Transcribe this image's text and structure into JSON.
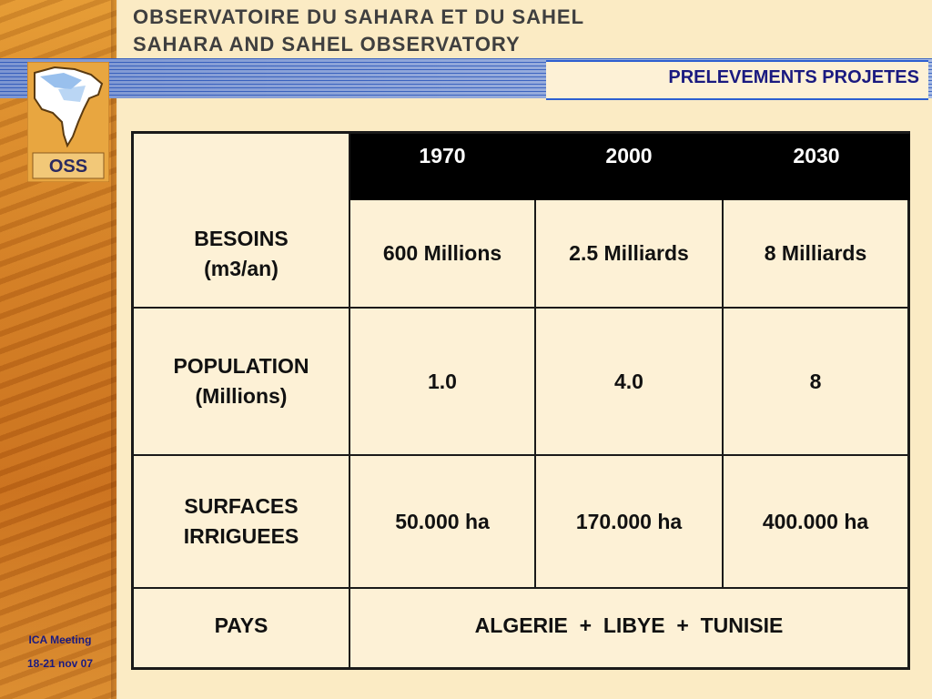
{
  "header": {
    "org_fr": "OBSERVATOIRE DU SAHARA ET DU SAHEL",
    "org_en": "SAHARA AND SAHEL OBSERVATORY",
    "page_title": "PRELEVEMENTS PROJETES",
    "logo_text": "OSS"
  },
  "colors": {
    "title_blue": "#1a1a80",
    "band_blue": "#4a72c9",
    "cream": "#fdf1d6",
    "sand": "#cf7a22"
  },
  "table": {
    "years": [
      "1970",
      "2000",
      "2030"
    ],
    "rows": [
      {
        "label": "BESOINS\n(m3/an)",
        "values": [
          "600 Millions",
          "2.5 Milliards",
          "8 Milliards"
        ]
      },
      {
        "label": "POPULATION\n(Millions)",
        "values": [
          "1.0",
          "4.0",
          "8"
        ]
      },
      {
        "label": "SURFACES\nIRRIGUEES",
        "values": [
          "50.000 ha",
          "170.000 ha",
          "400.000 ha"
        ]
      }
    ],
    "pays_label": "PAYS",
    "pays_value": "ALGERIE  +  LIBYE  +  TUNISIE"
  },
  "footer": {
    "line1": "ICA Meeting",
    "line2": "18-21 nov 07"
  }
}
